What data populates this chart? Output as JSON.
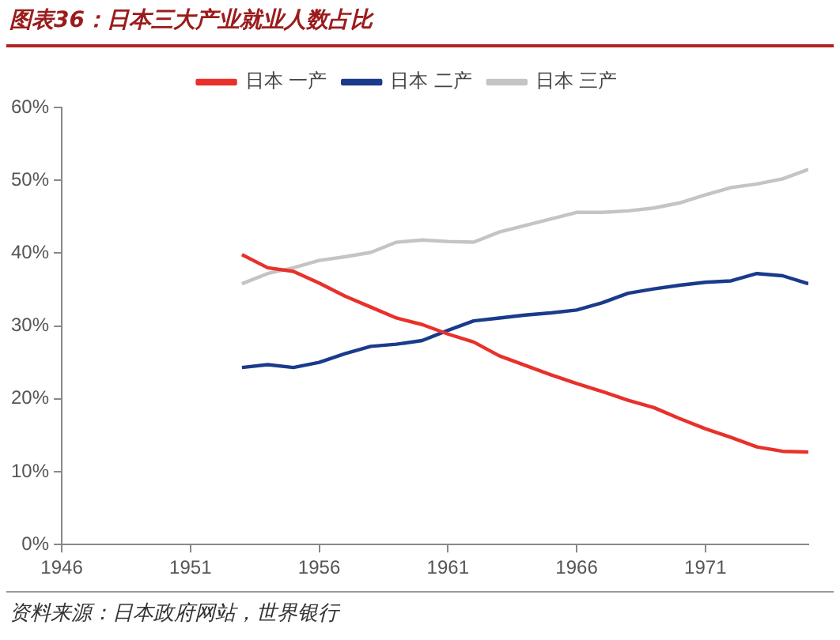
{
  "chart_data": {
    "type": "line",
    "title": "图表36：日本三大产业就业人数占比",
    "annotations": [
      "资料来源：日本政府网站，世界银行"
    ],
    "x": [
      1953,
      1954,
      1955,
      1956,
      1957,
      1958,
      1959,
      1960,
      1961,
      1962,
      1963,
      1964,
      1965,
      1966,
      1967,
      1968,
      1969,
      1970,
      1971,
      1972,
      1973,
      1974,
      1975
    ],
    "series": [
      {
        "name": "日本 一产",
        "color": "#e8312a",
        "values": [
          39.8,
          38.0,
          37.5,
          35.9,
          34.1,
          32.6,
          31.1,
          30.2,
          28.9,
          27.8,
          25.9,
          24.6,
          23.3,
          22.1,
          21.0,
          19.8,
          18.8,
          17.3,
          15.9,
          14.7,
          13.4,
          12.8,
          12.7
        ]
      },
      {
        "name": "日本 二产",
        "color": "#1a3a8c",
        "values": [
          24.3,
          24.7,
          24.3,
          25.0,
          26.2,
          27.2,
          27.5,
          28.0,
          29.4,
          30.7,
          31.1,
          31.5,
          31.8,
          32.2,
          33.2,
          34.5,
          35.1,
          35.6,
          36.0,
          36.2,
          37.2,
          36.9,
          35.8
        ]
      },
      {
        "name": "日本 三产",
        "color": "#c4c4c4",
        "values": [
          35.8,
          37.2,
          38.0,
          39.0,
          39.5,
          40.1,
          41.5,
          41.8,
          41.6,
          41.5,
          42.9,
          43.8,
          44.7,
          45.6,
          45.6,
          45.8,
          46.2,
          46.9,
          48.0,
          49.0,
          49.5,
          50.2,
          51.5
        ]
      }
    ],
    "xlim": [
      1946,
      1975
    ],
    "xticks": [
      1946,
      1951,
      1956,
      1961,
      1966,
      1971
    ],
    "ylim": [
      0,
      60
    ],
    "yticks": [
      {
        "value": 0,
        "label": "0%"
      },
      {
        "value": 10,
        "label": "10%"
      },
      {
        "value": 20,
        "label": "20%"
      },
      {
        "value": 30,
        "label": "30%"
      },
      {
        "value": 40,
        "label": "40%"
      },
      {
        "value": 50,
        "label": "50%"
      },
      {
        "value": 60,
        "label": "60%"
      }
    ],
    "grid": false,
    "legend": "top",
    "marker": "none",
    "line_style": "solid"
  }
}
